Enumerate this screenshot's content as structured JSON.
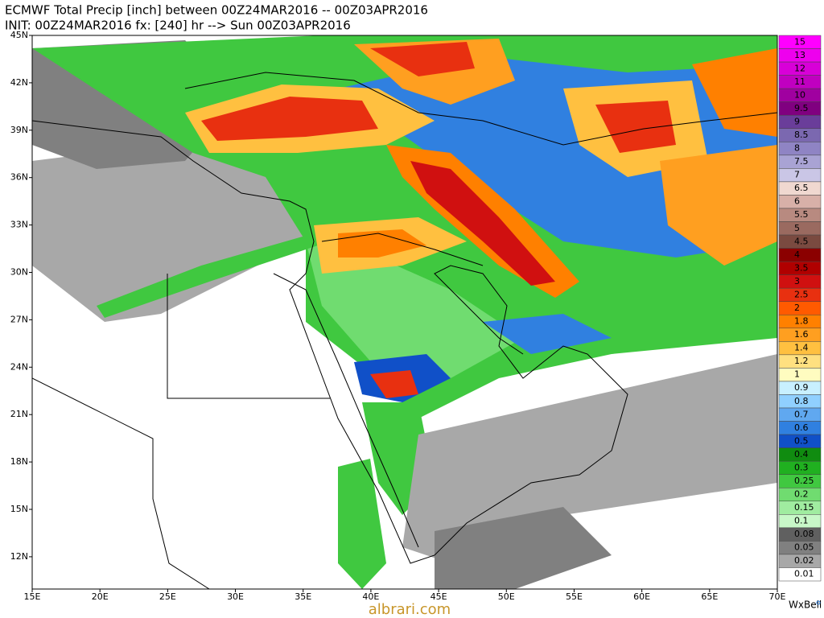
{
  "header": {
    "line1": "ECMWF Total Precip [inch] between 00Z24MAR2016 -- 00Z03APR2016",
    "line2": "INIT: 00Z24MAR2016 fx: [240] hr --> Sun 00Z03APR2016"
  },
  "axes": {
    "longitude": [
      "15E",
      "20E",
      "25E",
      "30E",
      "35E",
      "40E",
      "45E",
      "50E",
      "55E",
      "60E",
      "65E",
      "70E"
    ],
    "latitude": [
      "45N",
      "42N",
      "39N",
      "36N",
      "33N",
      "30N",
      "27N",
      "24N",
      "21N",
      "18N",
      "15N",
      "12N"
    ]
  },
  "legend": {
    "items": [
      {
        "label": "15",
        "color": "#ff00ff"
      },
      {
        "label": "13",
        "color": "#ee00ee"
      },
      {
        "label": "12",
        "color": "#d800d8"
      },
      {
        "label": "11",
        "color": "#c000c0"
      },
      {
        "label": "10",
        "color": "#a000a0"
      },
      {
        "label": "9.5",
        "color": "#800080"
      },
      {
        "label": "9",
        "color": "#6a3d9a"
      },
      {
        "label": "8.5",
        "color": "#7b68b0"
      },
      {
        "label": "8",
        "color": "#8f84c4"
      },
      {
        "label": "7.5",
        "color": "#a9a3d4"
      },
      {
        "label": "7",
        "color": "#cac6e6"
      },
      {
        "label": "6.5",
        "color": "#f0d8d0"
      },
      {
        "label": "6",
        "color": "#d8b0a8"
      },
      {
        "label": "5.5",
        "color": "#b88a80"
      },
      {
        "label": "5",
        "color": "#9a6a60"
      },
      {
        "label": "4.5",
        "color": "#7a4a40"
      },
      {
        "label": "4",
        "color": "#8b0000"
      },
      {
        "label": "3.5",
        "color": "#b00000"
      },
      {
        "label": "3",
        "color": "#d01010"
      },
      {
        "label": "2.5",
        "color": "#e83010"
      },
      {
        "label": "2",
        "color": "#ff5a00"
      },
      {
        "label": "1.8",
        "color": "#ff8000"
      },
      {
        "label": "1.6",
        "color": "#ff9f20"
      },
      {
        "label": "1.4",
        "color": "#ffc040"
      },
      {
        "label": "1.2",
        "color": "#ffe080"
      },
      {
        "label": "1",
        "color": "#fffcc0"
      },
      {
        "label": "0.9",
        "color": "#c8f0ff"
      },
      {
        "label": "0.8",
        "color": "#90d0ff"
      },
      {
        "label": "0.7",
        "color": "#60a8f0"
      },
      {
        "label": "0.6",
        "color": "#3080e0"
      },
      {
        "label": "0.5",
        "color": "#1050c8"
      },
      {
        "label": "0.4",
        "color": "#108c10"
      },
      {
        "label": "0.3",
        "color": "#20b020"
      },
      {
        "label": "0.25",
        "color": "#40c840"
      },
      {
        "label": "0.2",
        "color": "#70dc70"
      },
      {
        "label": "0.15",
        "color": "#a0eca0"
      },
      {
        "label": "0.1",
        "color": "#c8f8c8"
      },
      {
        "label": "0.08",
        "color": "#606060"
      },
      {
        "label": "0.05",
        "color": "#808080"
      },
      {
        "label": "0.02",
        "color": "#a8a8a8"
      },
      {
        "label": "0.01",
        "color": "#ffffff"
      }
    ]
  },
  "footer": {
    "credit": "WxBell",
    "watermark": "albrari.com"
  }
}
